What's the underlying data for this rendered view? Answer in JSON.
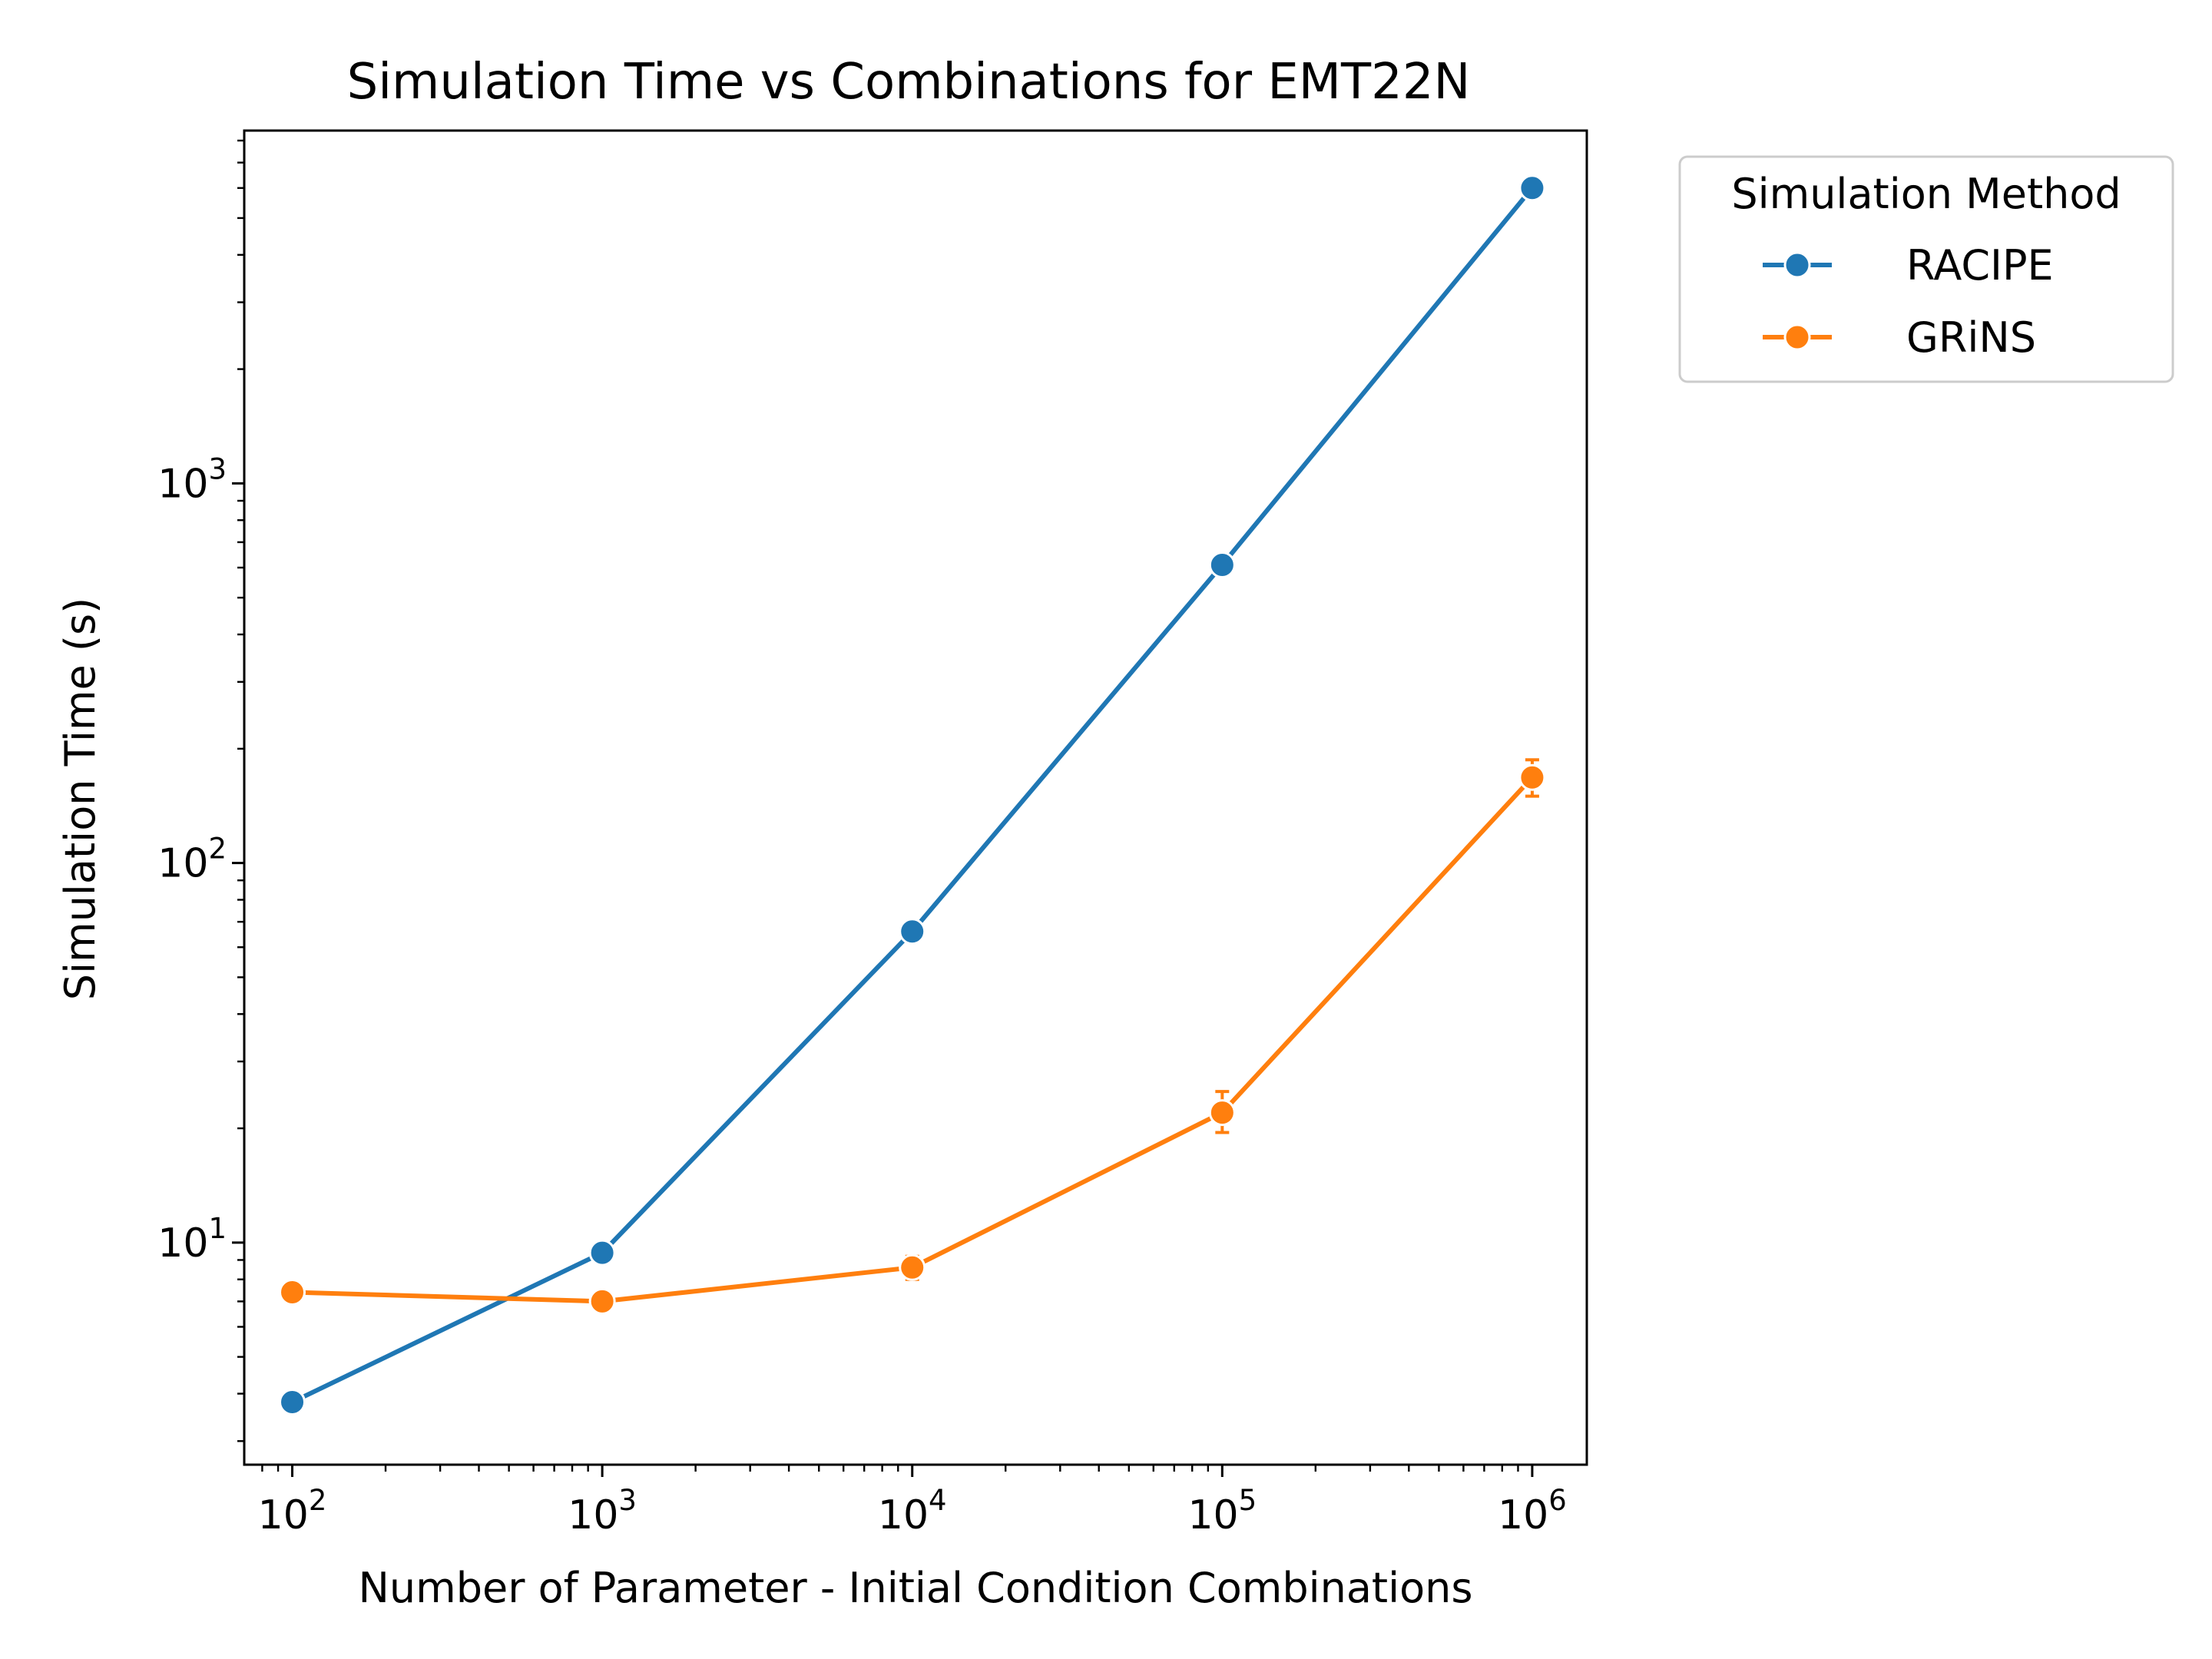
{
  "chart_data": {
    "type": "line",
    "title": "Simulation Time vs Combinations for EMT22N",
    "xlabel": "Number of Parameter - Initial Condition Combinations",
    "ylabel": "Simulation Time (s)",
    "x_scale": "log",
    "y_scale": "log",
    "xlim": [
      70,
      1500000
    ],
    "ylim": [
      2.6,
      8500
    ],
    "x": [
      100,
      1000,
      10000,
      100000,
      1000000
    ],
    "x_ticks": [
      {
        "base": "10",
        "exp": "2",
        "value": 100
      },
      {
        "base": "10",
        "exp": "3",
        "value": 1000
      },
      {
        "base": "10",
        "exp": "4",
        "value": 10000
      },
      {
        "base": "10",
        "exp": "5",
        "value": 100000
      },
      {
        "base": "10",
        "exp": "6",
        "value": 1000000
      }
    ],
    "y_ticks": [
      {
        "base": "10",
        "exp": "1",
        "value": 10
      },
      {
        "base": "10",
        "exp": "2",
        "value": 100
      },
      {
        "base": "10",
        "exp": "3",
        "value": 1000
      }
    ],
    "legend": {
      "title": "Simulation Method",
      "position": "outside upper right"
    },
    "grid": false,
    "series": [
      {
        "name": "RACIPE",
        "color": "#1f77b4",
        "values": [
          3.8,
          9.4,
          66,
          610,
          6000
        ],
        "errors": [
          [
            3.8,
            3.8
          ],
          [
            9.4,
            9.4
          ],
          [
            66,
            66
          ],
          [
            610,
            610
          ],
          [
            6000,
            6000
          ]
        ]
      },
      {
        "name": "GRiNS",
        "color": "#ff7f0e",
        "values": [
          7.4,
          7.0,
          8.6,
          22,
          168
        ],
        "errors": [
          [
            7.4,
            7.4
          ],
          [
            7.0,
            7.0
          ],
          [
            8.0,
            9.2
          ],
          [
            19.5,
            25
          ],
          [
            150,
            187
          ]
        ]
      }
    ]
  }
}
